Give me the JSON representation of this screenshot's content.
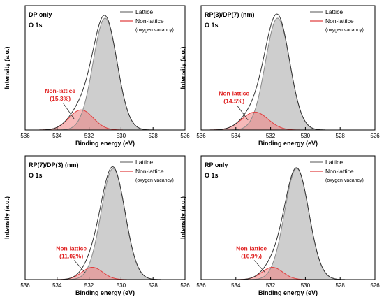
{
  "chart_data": [
    {
      "type": "area",
      "panel_label": "DP only",
      "peak_label": "O 1s",
      "xlabel": "Binding energy (eV)",
      "ylabel": "Intensity (a.u.)",
      "xlim": [
        536,
        526
      ],
      "xticks": [
        "536",
        "534",
        "532",
        "530",
        "528",
        "526"
      ],
      "legend": {
        "lattice": "Lattice",
        "nonlattice": "Non-lattice",
        "vacancy": "(oxygen vacancy)"
      },
      "annotation": {
        "label": "Non-lattice",
        "percent": "(15.3%)"
      },
      "series": [
        {
          "name": "Lattice",
          "center": 531.0,
          "sigma": 0.75,
          "amplitude": 1.0,
          "color": "#bdbdbd"
        },
        {
          "name": "Non-lattice",
          "center": 532.5,
          "sigma": 0.75,
          "amplitude": 0.18,
          "color": "#f08080"
        }
      ]
    },
    {
      "type": "area",
      "panel_label": "RP(3)/DP(7) (nm)",
      "peak_label": "O 1s",
      "xlabel": "Binding energy (eV)",
      "ylabel": "Intensity (a.u.)",
      "xlim": [
        536,
        526
      ],
      "xticks": [
        "536",
        "534",
        "532",
        "530",
        "528",
        "526"
      ],
      "legend": {
        "lattice": "Lattice",
        "nonlattice": "Non-lattice",
        "vacancy": "(oxygen vacancy)"
      },
      "annotation": {
        "label": "Non-lattice",
        "percent": "(14.5%)"
      },
      "series": [
        {
          "name": "Lattice",
          "center": 531.6,
          "sigma": 0.7,
          "amplitude": 1.0,
          "color": "#bdbdbd"
        },
        {
          "name": "Non-lattice",
          "center": 532.9,
          "sigma": 0.75,
          "amplitude": 0.16,
          "color": "#f08080"
        }
      ]
    },
    {
      "type": "area",
      "panel_label": "RP(7)/DP(3) (nm)",
      "peak_label": "O 1s",
      "xlabel": "Binding energy (eV)",
      "ylabel": "Intensity (a.u.)",
      "xlim": [
        536,
        526
      ],
      "xticks": [
        "536",
        "534",
        "532",
        "530",
        "528",
        "526"
      ],
      "legend": {
        "lattice": "Lattice",
        "nonlattice": "Non-lattice",
        "vacancy": "(oxygen vacancy)"
      },
      "annotation": {
        "label": "Non-lattice",
        "percent": "(11.02%)"
      },
      "series": [
        {
          "name": "Lattice",
          "center": 530.5,
          "sigma": 0.75,
          "amplitude": 1.0,
          "color": "#bdbdbd"
        },
        {
          "name": "Non-lattice",
          "center": 531.8,
          "sigma": 0.65,
          "amplitude": 0.11,
          "color": "#f08080"
        }
      ]
    },
    {
      "type": "area",
      "panel_label": "RP only",
      "peak_label": "O 1s",
      "xlabel": "Binding energy (eV)",
      "ylabel": "Intensity (a.u.)",
      "xlim": [
        536,
        526
      ],
      "xticks": [
        "536",
        "534",
        "532",
        "530",
        "528",
        "526"
      ],
      "legend": {
        "lattice": "Lattice",
        "nonlattice": "Non-lattice",
        "vacancy": "(oxygen vacancy)"
      },
      "annotation": {
        "label": "Non-lattice",
        "percent": "(10.9%)"
      },
      "series": [
        {
          "name": "Lattice",
          "center": 530.5,
          "sigma": 0.7,
          "amplitude": 1.0,
          "color": "#bdbdbd"
        },
        {
          "name": "Non-lattice",
          "center": 531.9,
          "sigma": 0.6,
          "amplitude": 0.11,
          "color": "#f08080"
        }
      ]
    }
  ]
}
